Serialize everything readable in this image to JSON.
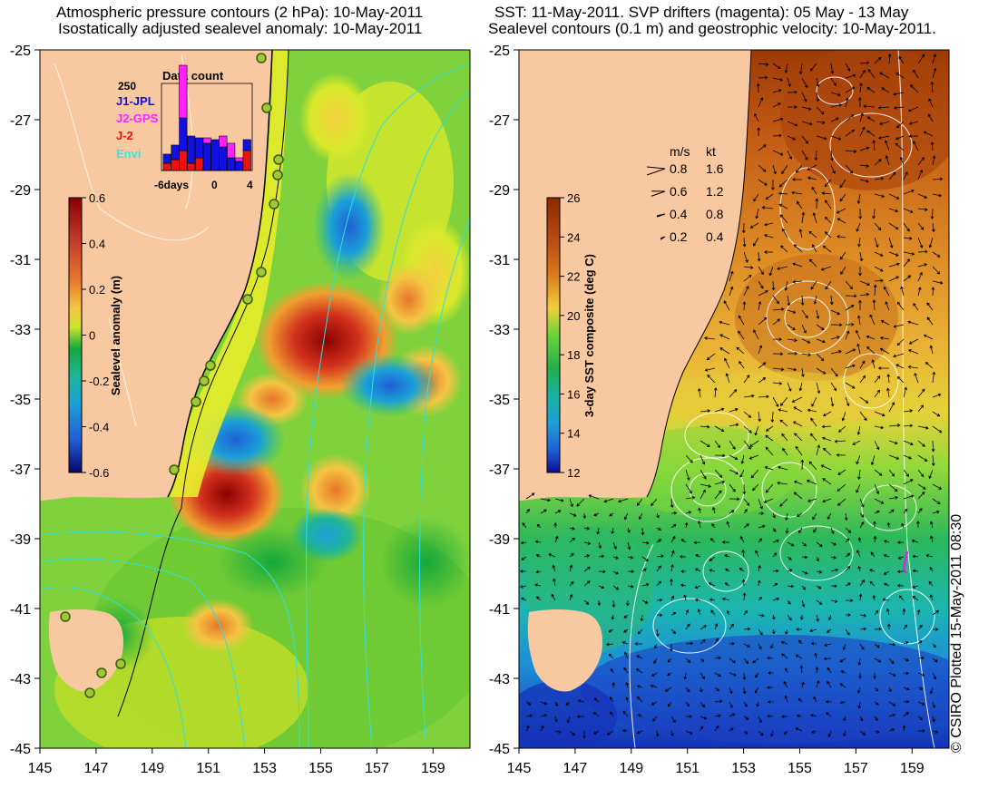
{
  "left_panel": {
    "title_line1": "Atmospheric pressure contours (2 hPa): 10-May-2011",
    "title_line2": "Isostatically adjusted sealevel anomaly: 10-May-2011",
    "lat_labels": [
      "-25",
      "-27",
      "-29",
      "-31",
      "-33",
      "-35",
      "-37",
      "-39",
      "-41",
      "-43",
      "-45"
    ],
    "lon_labels": [
      "145",
      "147",
      "149",
      "151",
      "153",
      "155",
      "157",
      "159"
    ],
    "colorbar": {
      "label": "Sealevel anomaly (m)",
      "ticks": [
        "0.6",
        "0.4",
        "0.2",
        "0",
        "-0.2",
        "-0.4",
        "-0.6"
      ],
      "colors": [
        "#8b0000",
        "#c0392b",
        "#e8762b",
        "#f4c542",
        "#cfe32c",
        "#6fce3a",
        "#14a83c",
        "#1fb59a",
        "#1aa0d8",
        "#1f5fd6",
        "#1a1aa8",
        "#07076b"
      ]
    },
    "inset": {
      "title": "Data count",
      "ymax_label": "250",
      "x_labels": [
        "-6days",
        "0",
        "4"
      ],
      "legend": [
        {
          "name": "J1-JPL",
          "color": "#1010e0"
        },
        {
          "name": "J2-GPS",
          "color": "#ff22ff"
        },
        {
          "name": "J-2",
          "color": "#ee1111"
        },
        {
          "name": "Envi",
          "color": "#22eeee"
        }
      ]
    }
  },
  "right_panel": {
    "title_line1": "SST: 11-May-2011. SVP drifters (magenta): 05 May - 13 May",
    "title_line2": "Sealevel contours (0.1 m) and geostrophic velocity: 10-May-2011.",
    "lat_labels": [
      "-25",
      "-27",
      "-29",
      "-31",
      "-33",
      "-35",
      "-37",
      "-39",
      "-41",
      "-43",
      "-45"
    ],
    "lon_labels": [
      "145",
      "147",
      "149",
      "151",
      "153",
      "155",
      "157",
      "159"
    ],
    "colorbar": {
      "label": "3-day SST composite (deg C)",
      "ticks": [
        "26",
        "24",
        "22",
        "20",
        "18",
        "16",
        "14",
        "12"
      ],
      "colors": [
        "#8b2a00",
        "#b84a12",
        "#d9791c",
        "#eaa23a",
        "#f0cf3a",
        "#c8e62a",
        "#6ad23a",
        "#23b04a",
        "#17b2a0",
        "#1f9fd8",
        "#1f5fd6",
        "#0d0d90"
      ]
    },
    "velocity_key": {
      "header_ms": "m/s",
      "header_kt": "kt",
      "rows": [
        {
          "ms": "0.8",
          "kt": "1.6"
        },
        {
          "ms": "0.6",
          "kt": "1.2"
        },
        {
          "ms": "0.4",
          "kt": "0.8"
        },
        {
          "ms": "0.2",
          "kt": "0.4"
        }
      ]
    }
  },
  "credit": "© CSIRO Plotted 15-May-2011 08:30",
  "colors": {
    "land": "#f8c9a0",
    "contour": "#ffffff",
    "pressure_contour": "#2ee0e0",
    "drifter": "#d629d6"
  }
}
